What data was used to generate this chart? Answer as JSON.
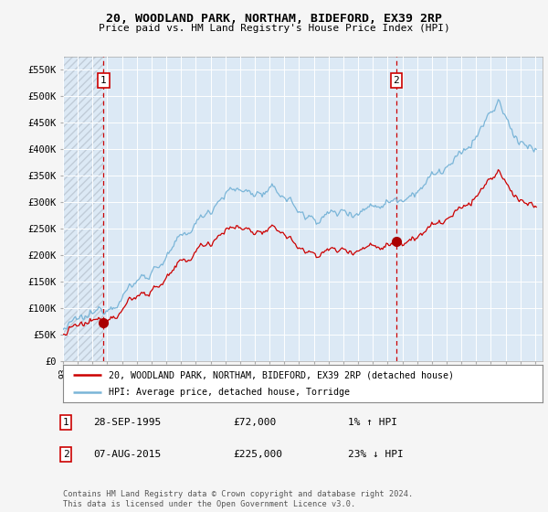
{
  "title_line1": "20, WOODLAND PARK, NORTHAM, BIDEFORD, EX39 2RP",
  "title_line2": "Price paid vs. HM Land Registry's House Price Index (HPI)",
  "ylim": [
    0,
    575000
  ],
  "yticks": [
    0,
    50000,
    100000,
    150000,
    200000,
    250000,
    300000,
    350000,
    400000,
    450000,
    500000,
    550000
  ],
  "ytick_labels": [
    "£0",
    "£50K",
    "£100K",
    "£150K",
    "£200K",
    "£250K",
    "£300K",
    "£350K",
    "£400K",
    "£450K",
    "£500K",
    "£550K"
  ],
  "hpi_color": "#7ab5d8",
  "sale_color": "#cc0000",
  "marker_color": "#aa0000",
  "dashed_line_color": "#cc0000",
  "bg_color": "#f5f5f5",
  "plot_bg_color": "#dce9f5",
  "grid_color": "#ffffff",
  "hatch_color": "#c0ccd8",
  "sale1_x": 1995.75,
  "sale1_y": 72000,
  "sale1_label": "1",
  "sale2_x": 2015.58,
  "sale2_y": 225000,
  "sale2_label": "2",
  "xlim_start": 1993.0,
  "xlim_end": 2025.5,
  "legend_sale_label": "20, WOODLAND PARK, NORTHAM, BIDEFORD, EX39 2RP (detached house)",
  "legend_hpi_label": "HPI: Average price, detached house, Torridge",
  "note1_label": "1",
  "note1_date": "28-SEP-1995",
  "note1_price": "£72,000",
  "note1_hpi": "1% ↑ HPI",
  "note2_label": "2",
  "note2_date": "07-AUG-2015",
  "note2_price": "£225,000",
  "note2_hpi": "23% ↓ HPI",
  "footer": "Contains HM Land Registry data © Crown copyright and database right 2024.\nThis data is licensed under the Open Government Licence v3.0."
}
